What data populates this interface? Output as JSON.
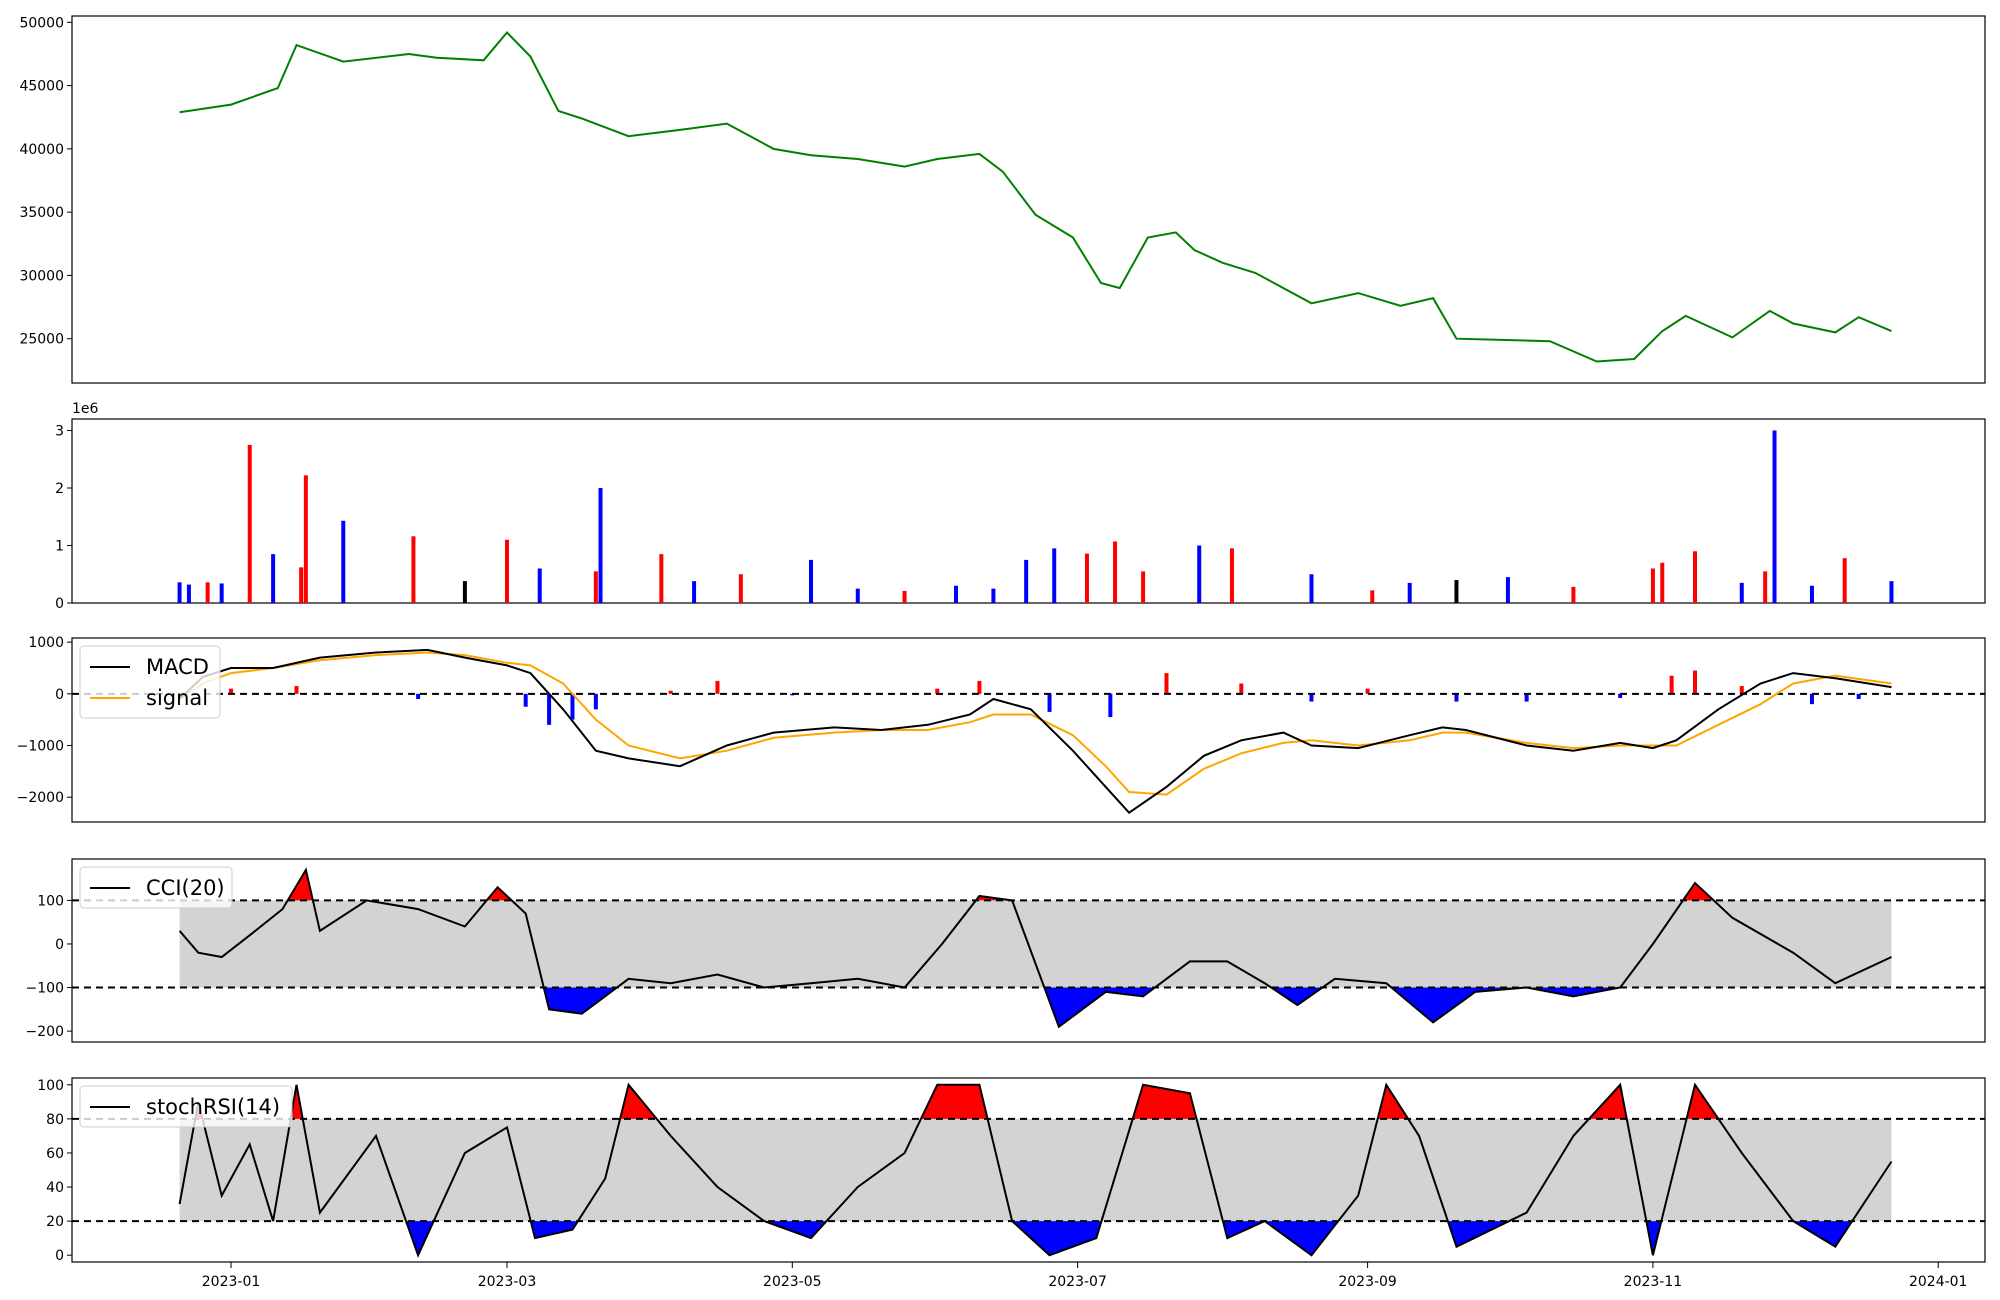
{
  "colors": {
    "price": "#008000",
    "up": "#ff0000",
    "down": "#0000ff",
    "flat": "#000000",
    "macd": "#000000",
    "signal": "#ffa500",
    "band": "#d3d3d3",
    "over": "#ff0000",
    "under": "#0000ff",
    "line": "#000000"
  },
  "chart_data": [
    {
      "type": "line",
      "name": "price",
      "x": [
        "2022-12-21",
        "2023-01-01",
        "2023-01-11",
        "2023-01-15",
        "2023-01-25",
        "2023-02-08",
        "2023-02-14",
        "2023-02-24",
        "2023-03-01",
        "2023-03-06",
        "2023-03-12",
        "2023-03-17",
        "2023-03-27",
        "2023-04-07",
        "2023-04-17",
        "2023-04-27",
        "2023-05-05",
        "2023-05-15",
        "2023-05-25",
        "2023-06-01",
        "2023-06-10",
        "2023-06-15",
        "2023-06-22",
        "2023-06-30",
        "2023-07-06",
        "2023-07-10",
        "2023-07-16",
        "2023-07-22",
        "2023-07-26",
        "2023-08-01",
        "2023-08-08",
        "2023-08-20",
        "2023-08-30",
        "2023-09-08",
        "2023-09-15",
        "2023-09-20",
        "2023-10-10",
        "2023-10-20",
        "2023-10-28",
        "2023-11-03",
        "2023-11-08",
        "2023-11-18",
        "2023-11-26",
        "2023-12-01",
        "2023-12-10",
        "2023-12-15",
        "2023-12-22"
      ],
      "y": [
        42900,
        43500,
        44800,
        48200,
        46900,
        47500,
        47200,
        47000,
        49200,
        47300,
        43000,
        42400,
        41000,
        41500,
        42000,
        40000,
        39500,
        39200,
        38600,
        39200,
        39600,
        38200,
        34800,
        33000,
        29400,
        29000,
        33000,
        33400,
        32000,
        31000,
        30200,
        27800,
        28600,
        27600,
        28200,
        25000,
        24800,
        23200,
        23400,
        25600,
        26800,
        25100,
        27200,
        26200,
        25500,
        26700,
        25600
      ],
      "ylim": [
        21500,
        50500
      ],
      "yticks": [
        25000,
        30000,
        35000,
        40000,
        45000,
        50000
      ],
      "yticklabels": [
        "25000",
        "30000",
        "35000",
        "40000",
        "45000",
        "50000"
      ]
    },
    {
      "type": "bar",
      "name": "volume",
      "multiplier_label": "1e6",
      "x": [
        "2022-12-21",
        "2022-12-23",
        "2022-12-27",
        "2022-12-30",
        "2023-01-05",
        "2023-01-10",
        "2023-01-16",
        "2023-01-17",
        "2023-01-25",
        "2023-02-09",
        "2023-02-20",
        "2023-03-01",
        "2023-03-08",
        "2023-03-20",
        "2023-03-21",
        "2023-04-03",
        "2023-04-10",
        "2023-04-20",
        "2023-05-05",
        "2023-05-15",
        "2023-05-25",
        "2023-06-05",
        "2023-06-13",
        "2023-06-20",
        "2023-06-26",
        "2023-07-03",
        "2023-07-09",
        "2023-07-15",
        "2023-07-27",
        "2023-08-03",
        "2023-08-20",
        "2023-09-02",
        "2023-09-10",
        "2023-09-20",
        "2023-10-01",
        "2023-10-15",
        "2023-11-01",
        "2023-11-03",
        "2023-11-10",
        "2023-11-20",
        "2023-11-25",
        "2023-11-27",
        "2023-12-05",
        "2023-12-12",
        "2023-12-22"
      ],
      "y": [
        0.36,
        0.32,
        0.36,
        0.34,
        2.75,
        0.85,
        0.62,
        2.22,
        1.43,
        1.16,
        0.38,
        1.1,
        0.6,
        0.55,
        2.0,
        0.85,
        0.38,
        0.5,
        0.75,
        0.25,
        0.21,
        0.3,
        0.25,
        0.75,
        0.95,
        0.86,
        1.07,
        0.55,
        1.0,
        0.95,
        0.5,
        0.22,
        0.35,
        0.4,
        0.45,
        0.28,
        0.6,
        0.7,
        0.9,
        0.35,
        0.55,
        3.0,
        0.3,
        0.78,
        0.38
      ],
      "colors": [
        "#0000ff",
        "#0000ff",
        "#ff0000",
        "#0000ff",
        "#ff0000",
        "#0000ff",
        "#ff0000",
        "#ff0000",
        "#0000ff",
        "#ff0000",
        "#000000",
        "#ff0000",
        "#0000ff",
        "#ff0000",
        "#0000ff",
        "#ff0000",
        "#0000ff",
        "#ff0000",
        "#0000ff",
        "#0000ff",
        "#ff0000",
        "#0000ff",
        "#0000ff",
        "#0000ff",
        "#0000ff",
        "#ff0000",
        "#ff0000",
        "#ff0000",
        "#0000ff",
        "#ff0000",
        "#0000ff",
        "#ff0000",
        "#0000ff",
        "#000000",
        "#0000ff",
        "#ff0000",
        "#ff0000",
        "#ff0000",
        "#ff0000",
        "#0000ff",
        "#ff0000",
        "#0000ff",
        "#0000ff",
        "#ff0000",
        "#0000ff"
      ],
      "ylim": [
        0,
        3.2
      ],
      "yticks": [
        0,
        1,
        2,
        3
      ],
      "yticklabels": [
        "0",
        "1",
        "2",
        "3"
      ]
    },
    {
      "type": "line",
      "name": "macd",
      "legend": [
        "MACD",
        "signal"
      ],
      "legend_loc": "upper-left",
      "x": [
        "2022-12-21",
        "2022-12-26",
        "2023-01-01",
        "2023-01-10",
        "2023-01-20",
        "2023-02-01",
        "2023-02-12",
        "2023-02-20",
        "2023-03-01",
        "2023-03-06",
        "2023-03-13",
        "2023-03-20",
        "2023-03-27",
        "2023-04-07",
        "2023-04-17",
        "2023-04-27",
        "2023-05-10",
        "2023-05-20",
        "2023-05-30",
        "2023-06-08",
        "2023-06-13",
        "2023-06-21",
        "2023-06-30",
        "2023-07-07",
        "2023-07-12",
        "2023-07-20",
        "2023-07-28",
        "2023-08-05",
        "2023-08-14",
        "2023-08-20",
        "2023-08-30",
        "2023-09-10",
        "2023-09-17",
        "2023-09-22",
        "2023-10-05",
        "2023-10-15",
        "2023-10-25",
        "2023-11-01",
        "2023-11-06",
        "2023-11-15",
        "2023-11-24",
        "2023-12-01",
        "2023-12-10",
        "2023-12-22"
      ],
      "series": [
        {
          "name": "MACD",
          "values": [
            -100,
            330,
            500,
            500,
            700,
            800,
            850,
            700,
            550,
            400,
            -300,
            -1100,
            -1250,
            -1400,
            -1000,
            -750,
            -650,
            -700,
            -600,
            -400,
            -100,
            -300,
            -1100,
            -1800,
            -2300,
            -1800,
            -1200,
            -900,
            -750,
            -1000,
            -1050,
            -800,
            -650,
            -700,
            -1000,
            -1100,
            -950,
            -1050,
            -900,
            -300,
            200,
            400,
            300,
            130
          ]
        },
        {
          "name": "signal",
          "values": [
            -100,
            200,
            400,
            500,
            650,
            750,
            800,
            750,
            600,
            550,
            200,
            -500,
            -1000,
            -1250,
            -1100,
            -850,
            -750,
            -700,
            -700,
            -550,
            -400,
            -400,
            -800,
            -1400,
            -1900,
            -1950,
            -1450,
            -1150,
            -950,
            -900,
            -1000,
            -900,
            -750,
            -750,
            -950,
            -1050,
            -1000,
            -1000,
            -1000,
            -600,
            -200,
            200,
            350,
            200
          ]
        }
      ],
      "histogram_x": [
        "2023-01-01",
        "2023-01-15",
        "2023-02-10",
        "2023-03-05",
        "2023-03-10",
        "2023-03-15",
        "2023-03-20",
        "2023-04-05",
        "2023-04-15",
        "2023-05-01",
        "2023-06-01",
        "2023-06-10",
        "2023-06-25",
        "2023-07-08",
        "2023-07-20",
        "2023-08-05",
        "2023-08-20",
        "2023-09-01",
        "2023-09-20",
        "2023-10-05",
        "2023-10-25",
        "2023-11-05",
        "2023-11-10",
        "2023-11-20",
        "2023-12-05",
        "2023-12-15"
      ],
      "histogram": [
        100,
        150,
        -100,
        -250,
        -600,
        -500,
        -300,
        60,
        250,
        -30,
        100,
        250,
        -350,
        -450,
        400,
        200,
        -150,
        100,
        -150,
        -150,
        -80,
        350,
        450,
        150,
        -200,
        -100
      ],
      "ylim": [
        -2480,
        1080
      ],
      "yticks": [
        -2000,
        -1000,
        0,
        1000
      ],
      "yticklabels": [
        "−2000",
        "−1000",
        "0",
        "1000"
      ],
      "hline": 0
    },
    {
      "type": "line",
      "name": "cci",
      "legend": [
        "CCI(20)"
      ],
      "legend_loc": "upper-left",
      "x": [
        "2022-12-21",
        "2022-12-25",
        "2022-12-30",
        "2023-01-05",
        "2023-01-12",
        "2023-01-17",
        "2023-01-20",
        "2023-01-30",
        "2023-02-10",
        "2023-02-20",
        "2023-02-27",
        "2023-03-05",
        "2023-03-10",
        "2023-03-17",
        "2023-03-27",
        "2023-04-05",
        "2023-04-15",
        "2023-04-25",
        "2023-05-05",
        "2023-05-15",
        "2023-05-25",
        "2023-06-02",
        "2023-06-10",
        "2023-06-17",
        "2023-06-27",
        "2023-07-07",
        "2023-07-15",
        "2023-07-25",
        "2023-08-02",
        "2023-08-10",
        "2023-08-17",
        "2023-08-25",
        "2023-09-05",
        "2023-09-15",
        "2023-09-24",
        "2023-10-05",
        "2023-10-15",
        "2023-10-25",
        "2023-11-01",
        "2023-11-10",
        "2023-11-18",
        "2023-12-01",
        "2023-12-10",
        "2023-12-22"
      ],
      "y": [
        30,
        -20,
        -30,
        20,
        80,
        170,
        30,
        100,
        80,
        40,
        130,
        70,
        -150,
        -160,
        -80,
        -90,
        -70,
        -100,
        -90,
        -80,
        -100,
        0,
        110,
        100,
        -190,
        -110,
        -120,
        -40,
        -40,
        -90,
        -140,
        -80,
        -90,
        -180,
        -110,
        -100,
        -120,
        -100,
        0,
        140,
        60,
        -20,
        -90,
        -30
      ],
      "ylim": [
        -225,
        195
      ],
      "yticks": [
        -200,
        -100,
        0,
        100
      ],
      "yticklabels": [
        "−200",
        "−100",
        "0",
        "100"
      ],
      "hlines": [
        100,
        -100
      ]
    },
    {
      "type": "line",
      "name": "stochrsi",
      "legend": [
        "stochRSI(14)"
      ],
      "legend_loc": "upper-left",
      "x": [
        "2022-12-21",
        "2022-12-25",
        "2022-12-30",
        "2023-01-05",
        "2023-01-10",
        "2023-01-15",
        "2023-01-20",
        "2023-02-01",
        "2023-02-10",
        "2023-02-20",
        "2023-03-01",
        "2023-03-07",
        "2023-03-15",
        "2023-03-22",
        "2023-03-27",
        "2023-04-05",
        "2023-04-15",
        "2023-04-25",
        "2023-05-05",
        "2023-05-15",
        "2023-05-25",
        "2023-06-01",
        "2023-06-10",
        "2023-06-17",
        "2023-06-25",
        "2023-07-05",
        "2023-07-15",
        "2023-07-25",
        "2023-08-02",
        "2023-08-10",
        "2023-08-20",
        "2023-08-30",
        "2023-09-05",
        "2023-09-12",
        "2023-09-20",
        "2023-10-05",
        "2023-10-15",
        "2023-10-25",
        "2023-11-01",
        "2023-11-10",
        "2023-11-20",
        "2023-12-01",
        "2023-12-10",
        "2023-12-22"
      ],
      "y": [
        30,
        90,
        35,
        65,
        20,
        100,
        25,
        70,
        0,
        60,
        75,
        10,
        15,
        45,
        100,
        70,
        40,
        20,
        10,
        40,
        60,
        100,
        100,
        20,
        0,
        10,
        100,
        95,
        10,
        20,
        0,
        35,
        100,
        70,
        5,
        25,
        70,
        100,
        0,
        100,
        60,
        20,
        5,
        55
      ],
      "ylim": [
        -4,
        104
      ],
      "yticks": [
        0,
        20,
        40,
        60,
        80,
        100
      ],
      "yticklabels": [
        "0",
        "20",
        "40",
        "60",
        "80",
        "100"
      ],
      "hlines": [
        80,
        20
      ],
      "xticks": [
        "2023-01-01",
        "2023-03-01",
        "2023-05-01",
        "2023-07-01",
        "2023-09-01",
        "2023-11-01",
        "2024-01-01"
      ],
      "xticklabels": [
        "2023-01",
        "2023-03",
        "2023-05",
        "2023-07",
        "2023-09",
        "2023-11",
        "2024-01"
      ]
    }
  ]
}
